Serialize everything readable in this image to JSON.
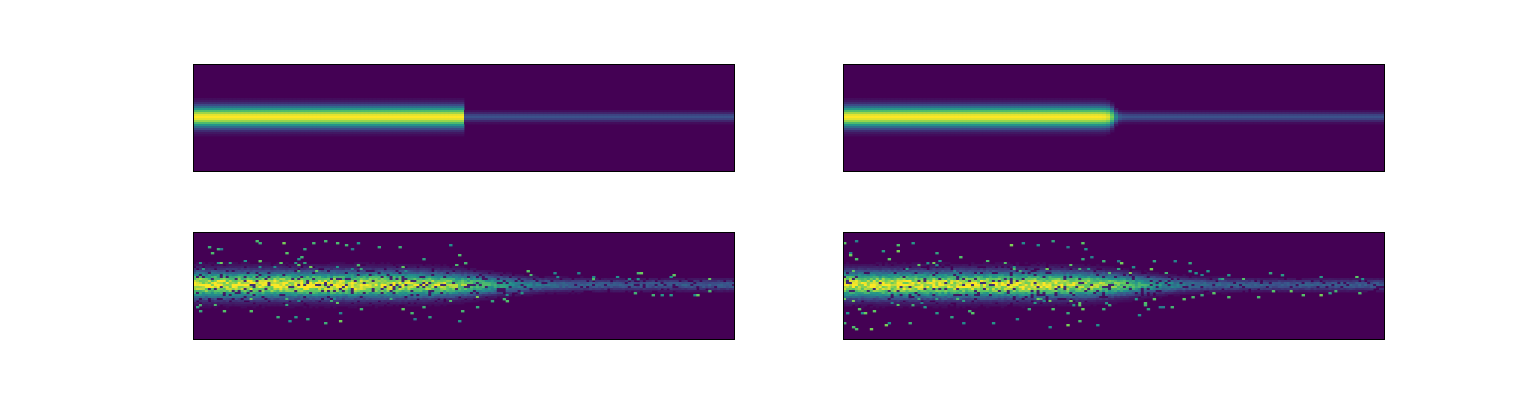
{
  "chart_data": [
    {
      "type": "heatmap",
      "panel": "top-left",
      "variant": "clean",
      "colormap": "viridis",
      "axes_visible": false,
      "grid": false,
      "band_center_fraction": 0.49,
      "bright_segment": {
        "x_range": [
          0.0,
          0.5
        ],
        "intensity": 1.0,
        "half_width_fraction": 0.1
      },
      "dim_segment": {
        "x_range": [
          0.5,
          1.0
        ],
        "intensity": 0.25,
        "half_width_fraction": 0.045
      },
      "transition": "sharp"
    },
    {
      "type": "heatmap",
      "panel": "top-right",
      "variant": "clean",
      "colormap": "viridis",
      "axes_visible": false,
      "grid": false,
      "band_center_fraction": 0.49,
      "bright_segment": {
        "x_range": [
          0.0,
          0.5
        ],
        "intensity": 1.0,
        "half_width_fraction": 0.1
      },
      "dim_segment": {
        "x_range": [
          0.5,
          1.0
        ],
        "intensity": 0.25,
        "half_width_fraction": 0.045
      },
      "transition": "smooth"
    },
    {
      "type": "heatmap",
      "panel": "bottom-left",
      "variant": "noisy",
      "colormap": "viridis",
      "axes_visible": false,
      "grid": false,
      "band_center_fraction": 0.49,
      "bright_segment": {
        "x_range": [
          0.0,
          0.5
        ],
        "intensity": 0.95,
        "half_width_fraction": 0.12
      },
      "dim_segment": {
        "x_range": [
          0.5,
          1.0
        ],
        "intensity": 0.28,
        "half_width_fraction": 0.05
      },
      "transition": "tapered",
      "noise_level": 0.35,
      "seed": 7
    },
    {
      "type": "heatmap",
      "panel": "bottom-right",
      "variant": "noisy",
      "colormap": "viridis",
      "axes_visible": false,
      "grid": false,
      "band_center_fraction": 0.49,
      "bright_segment": {
        "x_range": [
          0.0,
          0.5
        ],
        "intensity": 0.95,
        "half_width_fraction": 0.12
      },
      "dim_segment": {
        "x_range": [
          0.5,
          1.0
        ],
        "intensity": 0.28,
        "half_width_fraction": 0.05
      },
      "transition": "tapered",
      "noise_level": 0.35,
      "seed": 19
    }
  ],
  "colors": {
    "background": "#440154",
    "frame": "#000000",
    "colormap_stops": [
      "#440154",
      "#3b528b",
      "#21918c",
      "#5ec962",
      "#fde725"
    ]
  }
}
